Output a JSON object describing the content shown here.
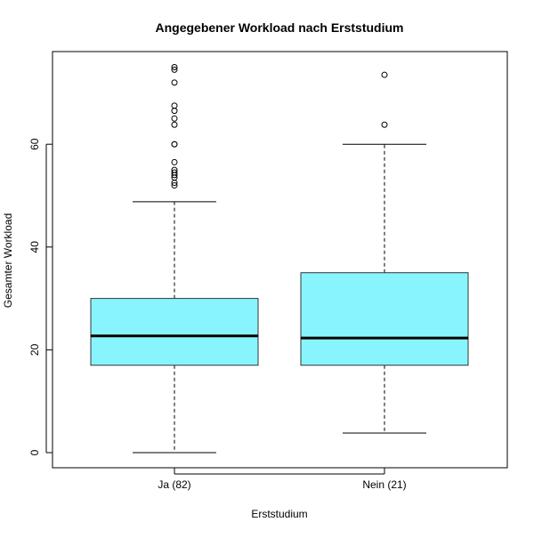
{
  "chart_data": {
    "type": "box",
    "title": "Angegebener Workload nach Erststudium",
    "xlabel": "Erststudium",
    "ylabel": "Gesamter Workload",
    "categories": [
      "Ja (82)",
      "Nein (21)"
    ],
    "ylim": [
      -3,
      78
    ],
    "yticks": [
      0,
      20,
      40,
      60
    ],
    "grid": false,
    "box_color": "#88F5FE",
    "boxes": [
      {
        "category": "Ja (82)",
        "whisker_low": 0,
        "q1": 17,
        "median": 22.7,
        "q3": 30,
        "whisker_high": 48.8,
        "outliers": [
          52,
          52.5,
          53.5,
          54,
          54.5,
          55,
          56.5,
          60,
          60,
          63.8,
          65,
          66.5,
          67.5,
          72,
          74.5,
          75
        ]
      },
      {
        "category": "Nein (21)",
        "whisker_low": 3.8,
        "q1": 17,
        "median": 22.3,
        "q3": 35,
        "whisker_high": 60,
        "outliers": [
          63.8,
          73.5
        ]
      }
    ]
  }
}
